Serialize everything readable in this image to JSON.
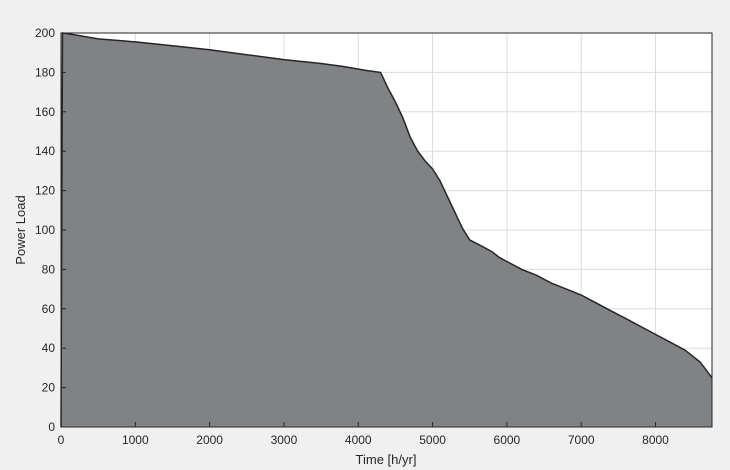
{
  "chart_data": {
    "type": "area",
    "title": "",
    "xlabel": "Time [h/yr]",
    "ylabel": "Power Load",
    "xlim": [
      0,
      8760
    ],
    "ylim": [
      0,
      200
    ],
    "xticks": [
      0,
      1000,
      2000,
      3000,
      4000,
      5000,
      6000,
      7000,
      8000
    ],
    "yticks": [
      0,
      20,
      40,
      60,
      80,
      100,
      120,
      140,
      160,
      180,
      200
    ],
    "grid": true,
    "legend": "none",
    "fill_color": "#808285",
    "line_color": "#262626",
    "series": [
      {
        "x": [
          0,
          20,
          200,
          500,
          1000,
          1500,
          2000,
          2500,
          3000,
          3500,
          3800,
          4100,
          4300,
          4400,
          4500,
          4600,
          4700,
          4800,
          4900,
          5000,
          5100,
          5200,
          5300,
          5400,
          5500,
          5600,
          5700,
          5800,
          5900,
          6000,
          6200,
          6400,
          6600,
          6800,
          7000,
          7200,
          7400,
          7600,
          7800,
          8000,
          8200,
          8400,
          8600,
          8700,
          8760
        ],
        "y": [
          0,
          200,
          199,
          197,
          195.5,
          193.5,
          191.5,
          189,
          186.5,
          184.5,
          183,
          181,
          180,
          172,
          165,
          157,
          147,
          140,
          135,
          131,
          125,
          117,
          109,
          101,
          95,
          93,
          91,
          89,
          86,
          84,
          80,
          77,
          73,
          70,
          67,
          63,
          59,
          55,
          51,
          47,
          43,
          39,
          33,
          28,
          25
        ]
      }
    ]
  }
}
